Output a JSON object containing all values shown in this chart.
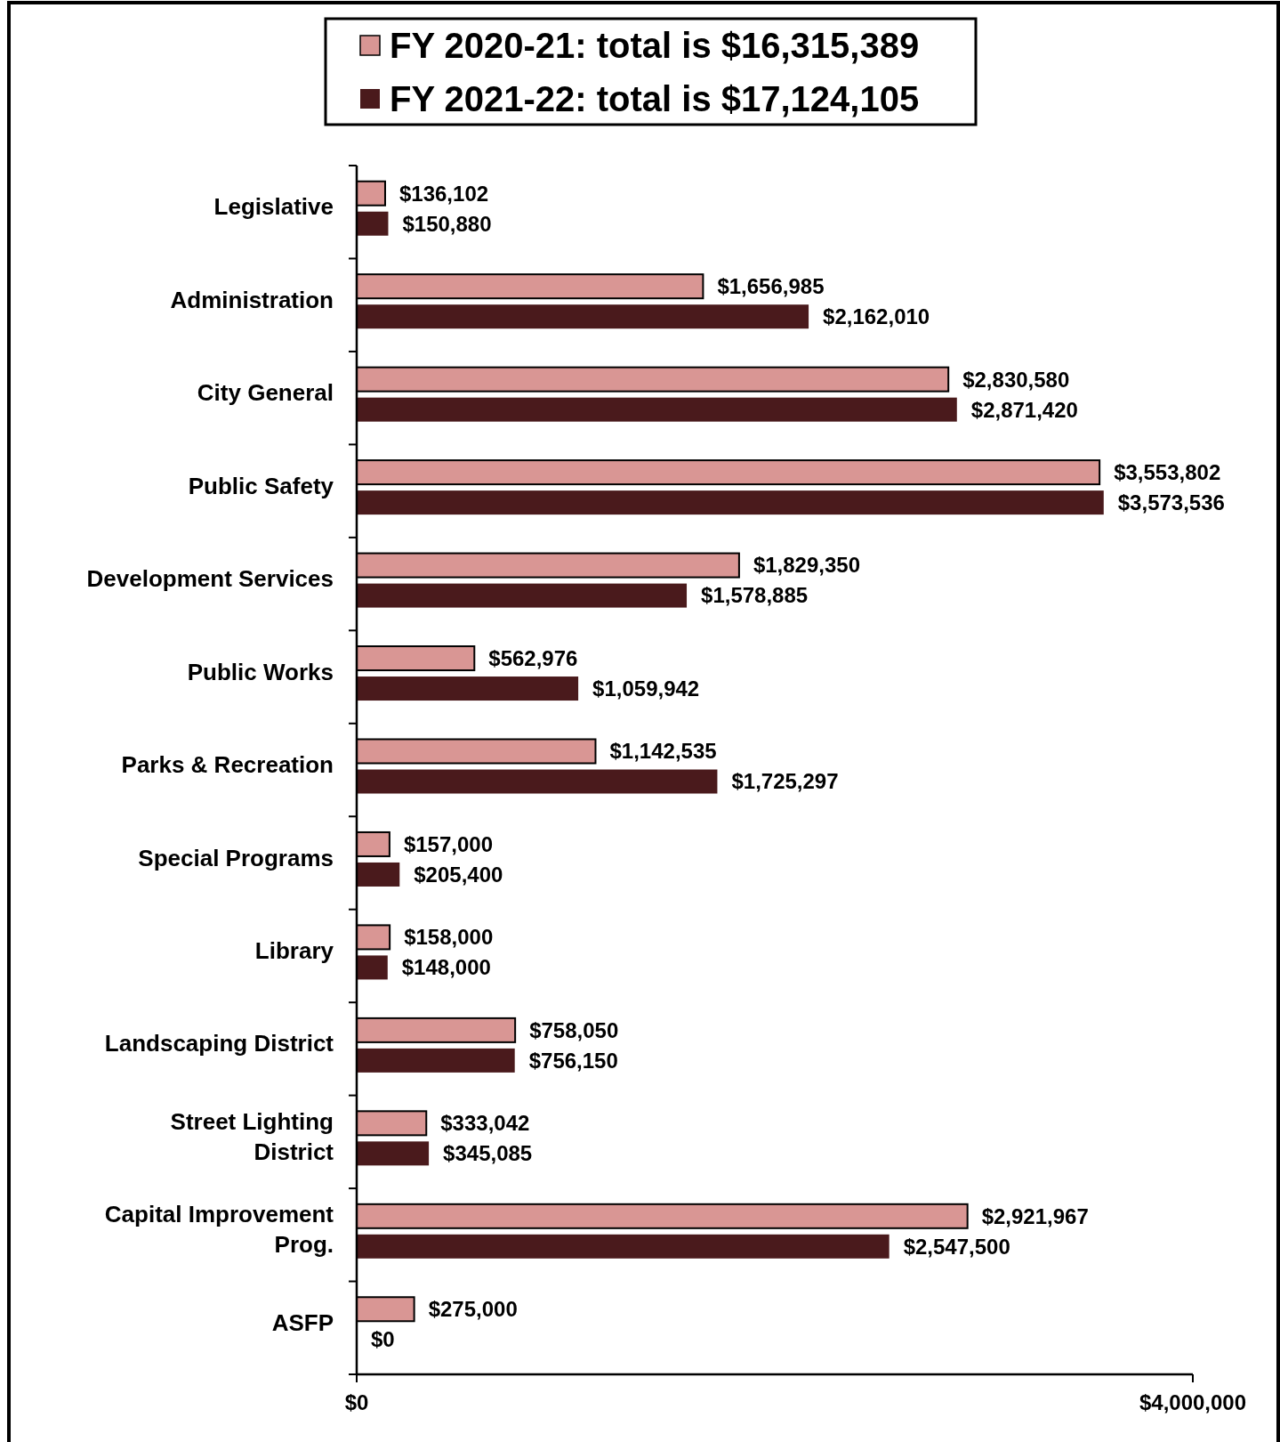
{
  "chart_data": {
    "type": "bar",
    "orientation": "horizontal",
    "legend": "top",
    "grid": false,
    "categories": [
      "Legislative",
      "Administration",
      "City General",
      "Public Safety",
      "Development Services",
      "Public Works",
      "Parks & Recreation",
      "Special Programs",
      "Library",
      "Landscaping District",
      "Street Lighting District",
      "Capital Improvement Prog.",
      "ASFP"
    ],
    "series": [
      {
        "name": "FY 2020-21: total is $16,315,389",
        "color": "#d99694",
        "values": [
          136102,
          1656985,
          2830580,
          3553802,
          1829350,
          562976,
          1142535,
          157000,
          158000,
          758050,
          333042,
          2921967,
          275000
        ],
        "value_labels": [
          "$136,102",
          "$1,656,985",
          "$2,830,580",
          "$3,553,802",
          "$1,829,350",
          "$562,976",
          "$1,142,535",
          "$157,000",
          "$158,000",
          "$758,050",
          "$333,042",
          "$2,921,967",
          "$275,000"
        ]
      },
      {
        "name": "FY 2021-22: total is $17,124,105",
        "color": "#4a1a1c",
        "values": [
          150880,
          2162010,
          2871420,
          3573536,
          1578885,
          1059942,
          1725297,
          205400,
          148000,
          756150,
          345085,
          2547500,
          0
        ],
        "value_labels": [
          "$150,880",
          "$2,162,010",
          "$2,871,420",
          "$3,573,536",
          "$1,578,885",
          "$1,059,942",
          "$1,725,297",
          "$205,400",
          "$148,000",
          "$756,150",
          "$345,085",
          "$2,547,500",
          "$0"
        ]
      }
    ],
    "xlim": [
      0,
      4000000
    ],
    "xticks": [
      {
        "value": 0,
        "label": "$0"
      },
      {
        "value": 4000000,
        "label": "$4,000,000"
      }
    ]
  }
}
